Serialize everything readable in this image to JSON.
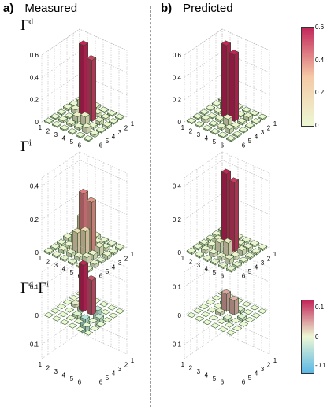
{
  "headers": {
    "a_tag": "a)",
    "a_title": "Measured",
    "b_tag": "b)",
    "b_title": "Predicted"
  },
  "row_labels": [
    {
      "base": "Γ",
      "sup": "d",
      "rest": "",
      "sup2": ""
    },
    {
      "base": "Γ",
      "sup": "i",
      "rest": "",
      "sup2": ""
    },
    {
      "base": "Γ",
      "sup": "d",
      "rest": "-Γ",
      "sup2": "i"
    }
  ],
  "colorbars": [
    {
      "range": [
        0,
        0.6
      ],
      "ticks": [
        "0.6",
        "0.4",
        "0.2",
        "0"
      ]
    },
    {
      "range": [
        -0.15,
        0.15
      ],
      "ticks": [
        "0.1",
        "0",
        "-0.1"
      ]
    }
  ],
  "colors": {
    "high": "#c2265a",
    "mid": "#f5c9a6",
    "low": "#edf8d4",
    "neg": "#5ab8e6",
    "grid": "#b8b8b8"
  },
  "chart_data": [
    {
      "type": "bar3d",
      "panel": "measured-gamma-d",
      "x": [
        1,
        2,
        3,
        4,
        5,
        6
      ],
      "y": [
        1,
        2,
        3,
        4,
        5,
        6
      ],
      "zticks": [
        "0",
        "0.2",
        "0.4",
        "0.6"
      ],
      "zlim": [
        0,
        0.6
      ],
      "grid": [
        [
          0.01,
          0.01,
          0.02,
          0.01,
          0.01,
          0.01
        ],
        [
          0.02,
          0.07,
          0.04,
          0.01,
          0.02,
          0.01
        ],
        [
          0.02,
          0.05,
          0.65,
          0.05,
          0.02,
          0.01
        ],
        [
          0.01,
          0.03,
          0.55,
          0.08,
          0.02,
          0.01
        ],
        [
          0.01,
          0.02,
          0.03,
          0.02,
          0.05,
          0.01
        ],
        [
          0.01,
          0.01,
          0.02,
          0.01,
          0.02,
          0.01
        ]
      ]
    },
    {
      "type": "bar3d",
      "panel": "predicted-gamma-d",
      "x": [
        1,
        2,
        3,
        4,
        5,
        6
      ],
      "y": [
        1,
        2,
        3,
        4,
        5,
        6
      ],
      "zticks": [
        "0",
        "0.2",
        "0.4",
        "0.6"
      ],
      "zlim": [
        0,
        0.6
      ],
      "grid": [
        [
          0.01,
          0.01,
          0.01,
          0.01,
          0.01,
          0.01
        ],
        [
          0.01,
          0.05,
          0.02,
          0.01,
          0.03,
          0.01
        ],
        [
          0.01,
          0.02,
          0.65,
          0.02,
          0.01,
          0.01
        ],
        [
          0.01,
          0.01,
          0.6,
          0.06,
          0.02,
          0.01
        ],
        [
          0.01,
          0.03,
          0.02,
          0.02,
          0.04,
          0.01
        ],
        [
          0.01,
          0.01,
          0.01,
          0.01,
          0.01,
          0.01
        ]
      ]
    },
    {
      "type": "bar3d",
      "panel": "measured-gamma-i",
      "x": [
        1,
        2,
        3,
        4,
        5,
        6
      ],
      "y": [
        1,
        2,
        3,
        4,
        5,
        6
      ],
      "zticks": [
        "0",
        "0.2",
        "0.4"
      ],
      "zlim": [
        0,
        0.45
      ],
      "grid": [
        [
          0.01,
          0.01,
          0.02,
          0.01,
          0.01,
          0.01
        ],
        [
          0.02,
          0.14,
          0.05,
          0.02,
          0.02,
          0.01
        ],
        [
          0.02,
          0.06,
          0.33,
          0.12,
          0.02,
          0.01
        ],
        [
          0.01,
          0.03,
          0.3,
          0.15,
          0.02,
          0.01
        ],
        [
          0.01,
          0.02,
          0.05,
          0.03,
          0.04,
          0.01
        ],
        [
          0.01,
          0.01,
          0.02,
          0.01,
          0.02,
          0.01
        ]
      ]
    },
    {
      "type": "bar3d",
      "panel": "predicted-gamma-i",
      "x": [
        1,
        2,
        3,
        4,
        5,
        6
      ],
      "y": [
        1,
        2,
        3,
        4,
        5,
        6
      ],
      "zticks": [
        "0",
        "0.2",
        "0.4"
      ],
      "zlim": [
        0,
        0.45
      ],
      "grid": [
        [
          0.01,
          0.01,
          0.01,
          0.01,
          0.01,
          0.01
        ],
        [
          0.01,
          0.05,
          0.03,
          0.02,
          0.02,
          0.01
        ],
        [
          0.01,
          0.03,
          0.45,
          0.06,
          0.02,
          0.01
        ],
        [
          0.01,
          0.02,
          0.42,
          0.08,
          0.02,
          0.01
        ],
        [
          0.01,
          0.02,
          0.03,
          0.02,
          0.03,
          0.01
        ],
        [
          0.01,
          0.01,
          0.01,
          0.01,
          0.01,
          0.01
        ]
      ]
    },
    {
      "type": "bar3d",
      "panel": "measured-difference",
      "x": [
        1,
        2,
        3,
        4,
        5,
        6
      ],
      "y": [
        1,
        2,
        3,
        4,
        5,
        6
      ],
      "zticks": [
        "-0.1",
        "0",
        "0.1"
      ],
      "zlim": [
        -0.15,
        0.15
      ],
      "grid": [
        [
          0,
          0,
          0,
          0,
          0,
          0
        ],
        [
          0,
          -0.03,
          0.01,
          0,
          0,
          0
        ],
        [
          0,
          0,
          0.16,
          -0.01,
          0,
          0
        ],
        [
          0,
          -0.04,
          0.12,
          -0.05,
          0,
          0
        ],
        [
          0,
          0,
          -0.03,
          0,
          0,
          0
        ],
        [
          0,
          0,
          0,
          0,
          0,
          0
        ]
      ]
    },
    {
      "type": "bar3d",
      "panel": "predicted-difference",
      "x": [
        1,
        2,
        3,
        4,
        5,
        6
      ],
      "y": [
        1,
        2,
        3,
        4,
        5,
        6
      ],
      "zticks": [
        "-0.1",
        "0",
        "0.1"
      ],
      "zlim": [
        -0.15,
        0.15
      ],
      "grid": [
        [
          0,
          0,
          0,
          0,
          0,
          0
        ],
        [
          0,
          -0.01,
          0,
          0,
          0,
          0
        ],
        [
          0,
          0,
          0.06,
          0.01,
          0,
          0
        ],
        [
          0,
          -0.01,
          0.05,
          -0.01,
          0,
          0
        ],
        [
          0,
          0,
          -0.01,
          0,
          0,
          0
        ],
        [
          0,
          0,
          0,
          0,
          0,
          0
        ]
      ]
    }
  ]
}
